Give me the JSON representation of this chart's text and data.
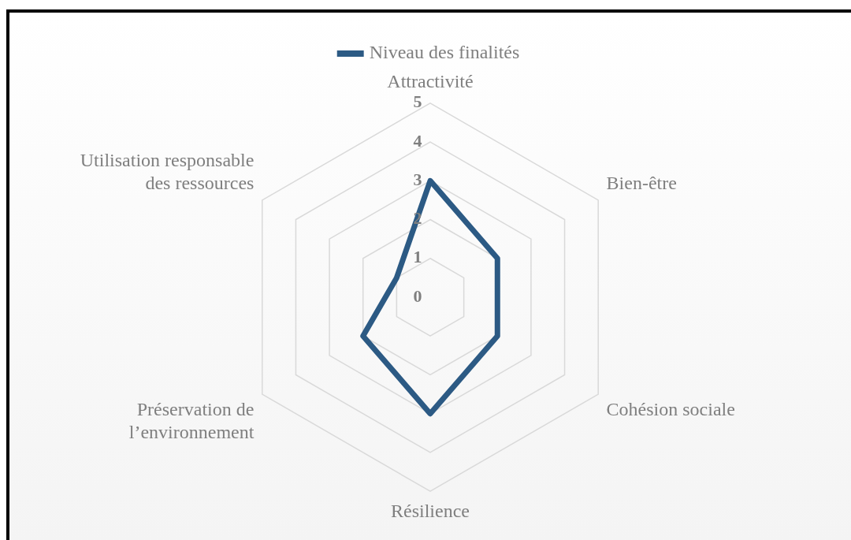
{
  "chart_data": {
    "type": "radar",
    "categories": [
      "Attractivité",
      "Bien-être",
      "Cohésion sociale",
      "Résilience",
      "Préservation de\n l’environnement",
      "Utilisation responsable\ndes ressources"
    ],
    "series": [
      {
        "name": "Niveau des finalités",
        "color": "#2c5a84",
        "values": [
          3,
          2,
          2,
          3,
          2,
          1
        ]
      }
    ],
    "ylim": [
      0,
      5
    ],
    "yticks": [
      0,
      1,
      2,
      3,
      4,
      5
    ],
    "grid": true,
    "legend": "top",
    "marker": "none",
    "line_style": "solid"
  }
}
